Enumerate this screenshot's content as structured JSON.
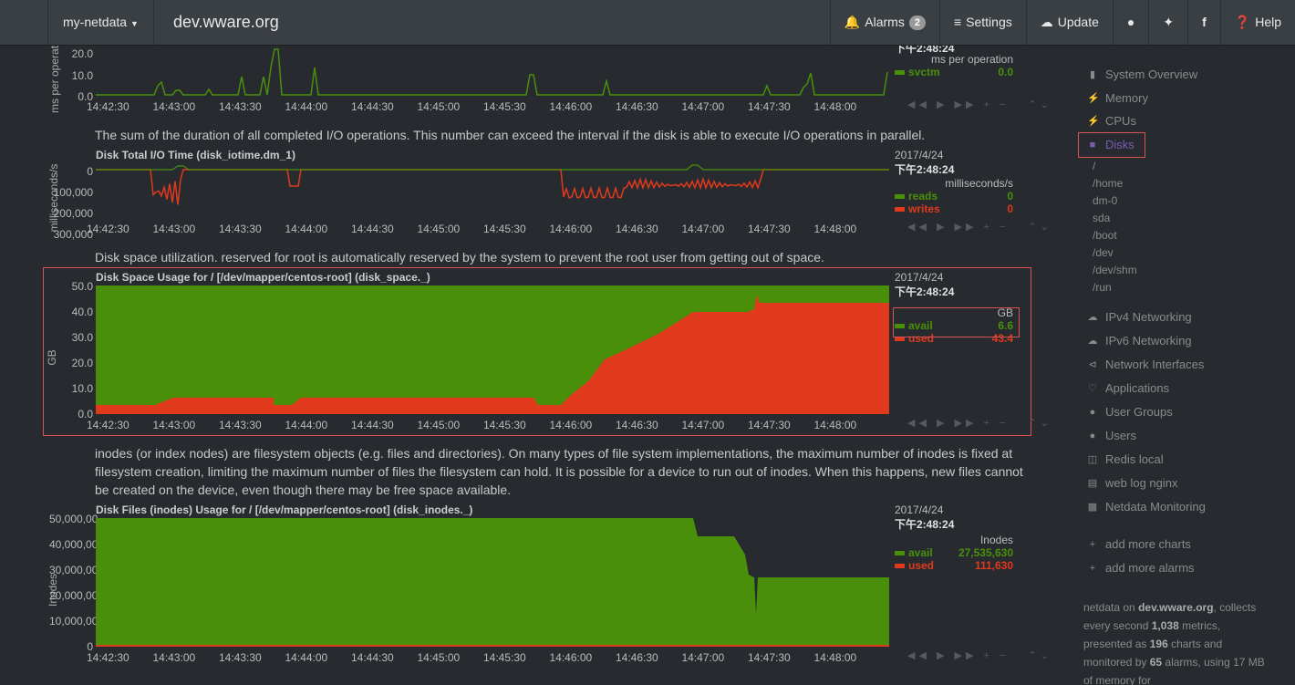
{
  "navbar": {
    "brand": "my-netdata",
    "host": "dev.wware.org",
    "alarms_label": "Alarms",
    "alarms_count": "2",
    "settings_label": "Settings",
    "update_label": "Update",
    "help_label": "Help"
  },
  "colors": {
    "green": "#4a8f0a",
    "red": "#e1391c",
    "bg": "#272b30",
    "nav": "#3a3f44"
  },
  "x_ticks": [
    "14:42:30",
    "14:43:00",
    "14:43:30",
    "14:44:00",
    "14:44:30",
    "14:45:00",
    "14:45:30",
    "14:46:00",
    "14:46:30",
    "14:47:00",
    "14:47:30",
    "14:48:00"
  ],
  "charts": [
    {
      "id": "svctm",
      "ylabel": "ms per operation",
      "yticks": [
        "20.0",
        "10.0",
        "0.0"
      ],
      "date": "",
      "time": "下午2:48:24",
      "units": "ms per operation",
      "legend": [
        {
          "name": "svctm",
          "value": "0.0",
          "color": "#4a8f0a"
        }
      ]
    },
    {
      "id": "iotime",
      "description": "The sum of the duration of all completed I/O operations. This number can exceed the interval if the disk is able to execute I/O operations in parallel.",
      "title": "Disk Total I/O Time (disk_iotime.dm_1)",
      "ylabel": "milliseconds/s",
      "yticks": [
        "0",
        "100,000",
        "200,000",
        "300,000"
      ],
      "date": "2017/4/24",
      "time": "下午2:48:24",
      "units": "milliseconds/s",
      "legend": [
        {
          "name": "reads",
          "value": "0",
          "color": "#4a8f0a"
        },
        {
          "name": "writes",
          "value": "0",
          "color": "#e1391c"
        }
      ]
    },
    {
      "id": "space",
      "description": "Disk space utilization. reserved for root is automatically reserved by the system to prevent the root user from getting out of space.",
      "title": "Disk Space Usage for / [/dev/mapper/centos-root] (disk_space._)",
      "ylabel": "GB",
      "yticks": [
        "50.0",
        "40.0",
        "30.0",
        "20.0",
        "10.0",
        "0.0"
      ],
      "date": "2017/4/24",
      "time": "下午2:48:24",
      "units": "GB",
      "legend": [
        {
          "name": "avail",
          "value": "6.6",
          "color": "#4a8f0a"
        },
        {
          "name": "used",
          "value": "43.4",
          "color": "#e1391c"
        }
      ]
    },
    {
      "id": "inodes",
      "description": "inodes (or index nodes) are filesystem objects (e.g. files and directories). On many types of file system implementations, the maximum number of inodes is fixed at filesystem creation, limiting the maximum number of files the filesystem can hold. It is possible for a device to run out of inodes. When this happens, new files cannot be created on the device, even though there may be free space available.",
      "title": "Disk Files (inodes) Usage for / [/dev/mapper/centos-root] (disk_inodes._)",
      "ylabel": "Inodes",
      "yticks": [
        "50,000,00",
        "40,000,00",
        "30,000,00",
        "20,000,00",
        "10,000,00",
        "0"
      ],
      "date": "2017/4/24",
      "time": "下午2:48:24",
      "units": "Inodes",
      "legend": [
        {
          "name": "avail",
          "value": "27,535,630",
          "color": "#4a8f0a"
        },
        {
          "name": "used",
          "value": "111,630",
          "color": "#e1391c"
        }
      ]
    }
  ],
  "sidebar": {
    "items": [
      {
        "label": "System Overview",
        "icon": "bookmark-icon"
      },
      {
        "label": "Memory",
        "icon": "bolt-icon"
      },
      {
        "label": "CPUs",
        "icon": "bolt-icon"
      },
      {
        "label": "Disks",
        "icon": "folder-icon"
      }
    ],
    "disk_subitems": [
      "/",
      "/home",
      "dm-0",
      "sda",
      "/boot",
      "/dev",
      "/dev/shm",
      "/run"
    ],
    "items2": [
      {
        "label": "IPv4 Networking",
        "icon": "cloud-icon"
      },
      {
        "label": "IPv6 Networking",
        "icon": "cloud-icon"
      },
      {
        "label": "Network Interfaces",
        "icon": "share-icon"
      },
      {
        "label": "Applications",
        "icon": "heartbeat-icon"
      },
      {
        "label": "User Groups",
        "icon": "users-icon"
      },
      {
        "label": "Users",
        "icon": "user-icon"
      },
      {
        "label": "Redis local",
        "icon": "database-icon"
      },
      {
        "label": "web log nginx",
        "icon": "file-icon"
      },
      {
        "label": "Netdata Monitoring",
        "icon": "bar-chart-icon"
      }
    ],
    "add_charts": "add more charts",
    "add_alarms": "add more alarms",
    "footer": {
      "t1": "netdata on ",
      "host": "dev.wware.org",
      "t2": ", collects every second ",
      "metrics": "1,038",
      "t3": " metrics, presented as ",
      "charts": "196",
      "t4": " charts and monitored by ",
      "alarms": "65",
      "t5": " alarms, using 17 MB of memory for"
    }
  }
}
